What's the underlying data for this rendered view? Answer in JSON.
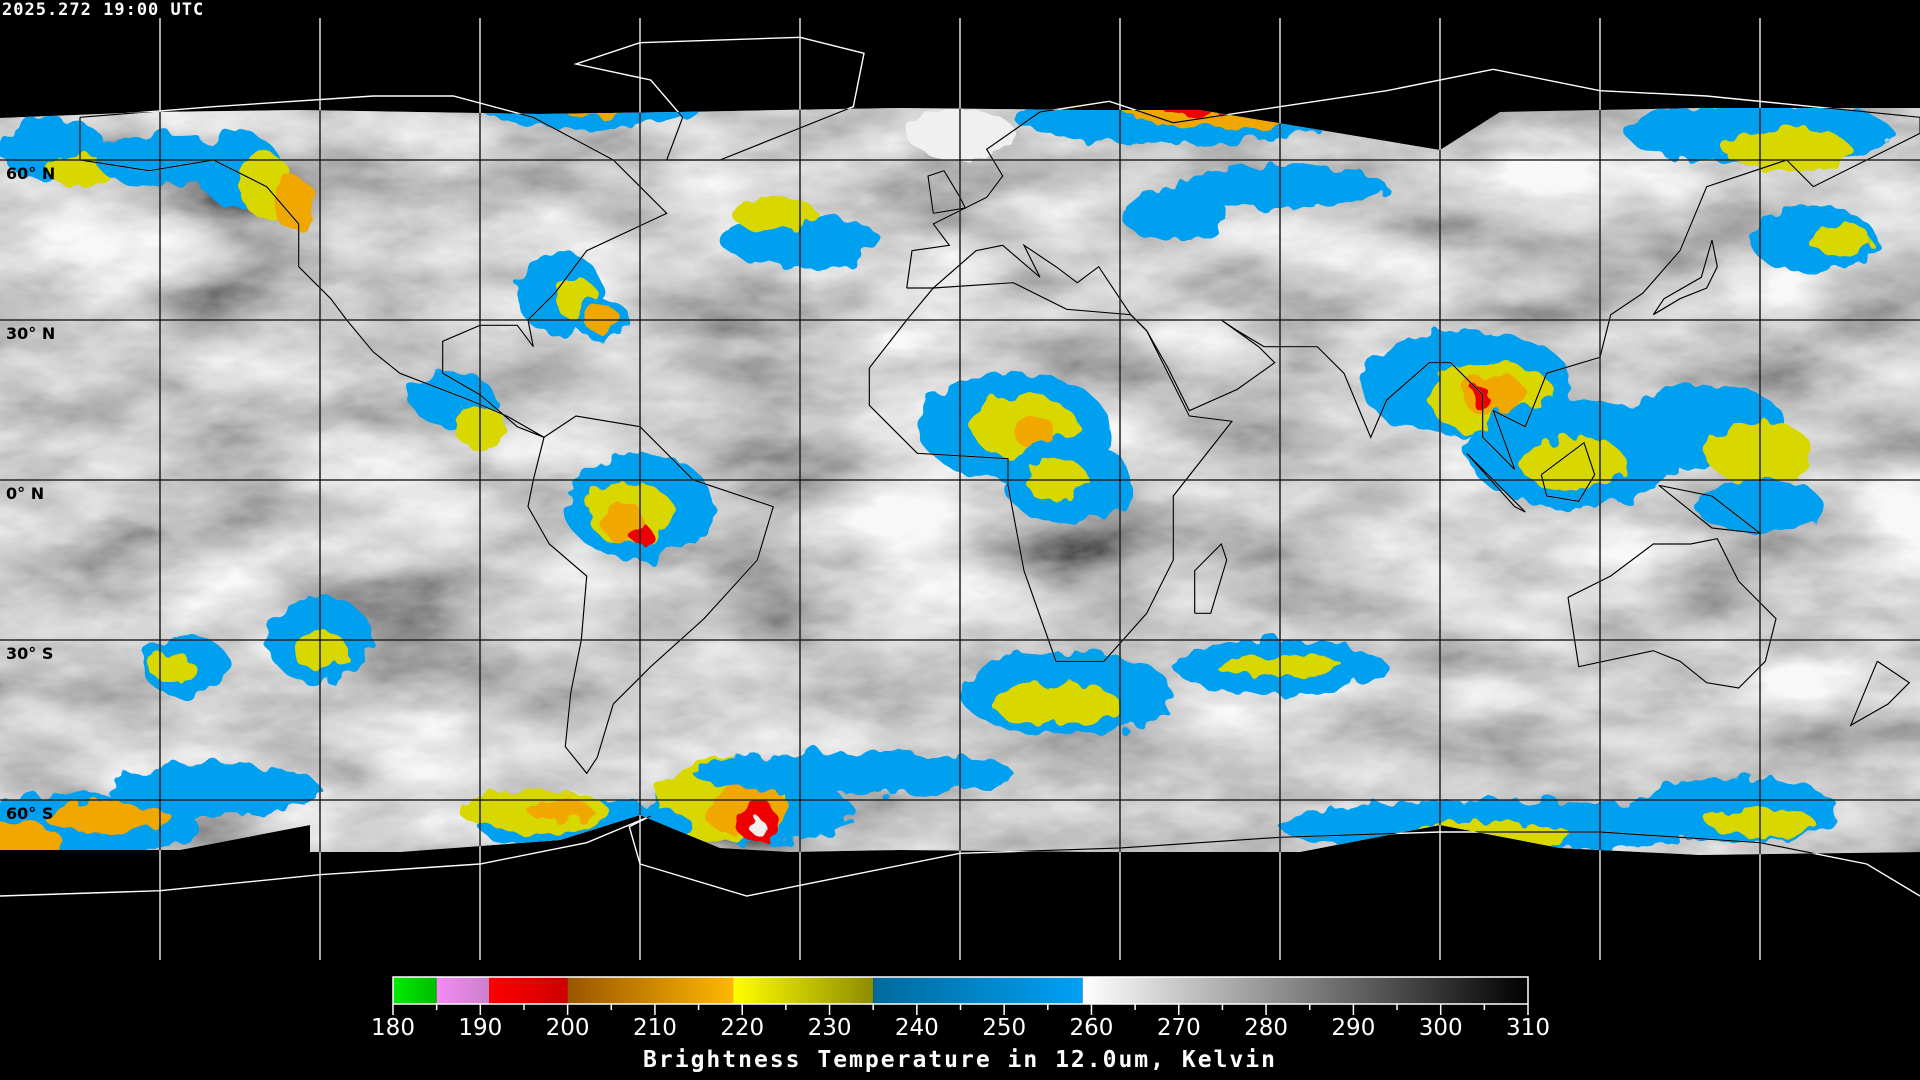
{
  "timestamp": "2025.272 19:00 UTC",
  "map": {
    "projection": "equirectangular",
    "lon_range": [
      -180,
      180
    ],
    "lat_range": [
      -90,
      90
    ],
    "graticule_step_deg": 30,
    "lat_labels": [
      "60° N",
      "30° N",
      "0° N",
      "30° S",
      "60° S"
    ],
    "coastline_colors": {
      "over_data": "#000000",
      "over_background": "#ffffff"
    },
    "background": "#000000"
  },
  "colorbar": {
    "title": "Brightness Temperature in 12.0um, Kelvin",
    "min": 180,
    "max": 310,
    "tick_labels": [
      "180",
      "190",
      "200",
      "210",
      "220",
      "230",
      "240",
      "250",
      "260",
      "270",
      "280",
      "290",
      "300",
      "310"
    ],
    "segments": [
      {
        "from": 180,
        "to": 185,
        "colors": [
          "#00ee00",
          "#00bb00"
        ]
      },
      {
        "from": 185,
        "to": 191,
        "colors": [
          "#f58af5",
          "#cc80cc"
        ]
      },
      {
        "from": 191,
        "to": 200,
        "colors": [
          "#ff0000",
          "#cc0000"
        ]
      },
      {
        "from": 200,
        "to": 219,
        "colors": [
          "#9a5500",
          "#ffb800"
        ]
      },
      {
        "from": 219,
        "to": 235,
        "colors": [
          "#ffff00",
          "#8c8c00"
        ]
      },
      {
        "from": 235,
        "to": 259,
        "colors": [
          "#006a9c",
          "#00a0f5"
        ]
      },
      {
        "from": 259,
        "to": 310,
        "colors": [
          "#ffffff",
          "#000000"
        ]
      }
    ]
  }
}
